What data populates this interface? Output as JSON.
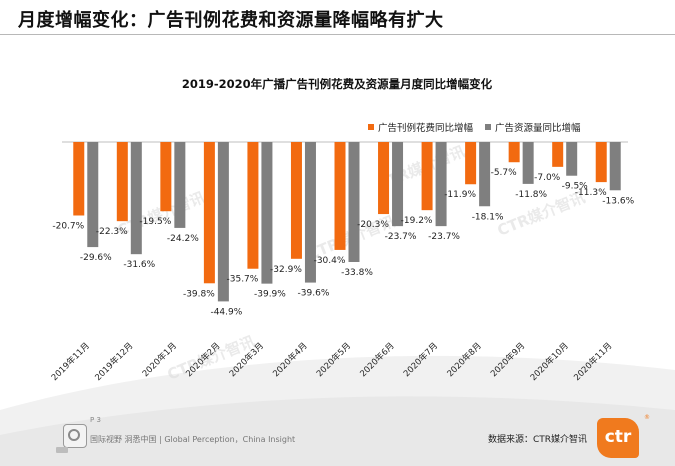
{
  "slide": {
    "title": "月度增幅变化：广告刊例花费和资源量降幅略有扩大"
  },
  "footer": {
    "page": "P 3",
    "slogan": "国际视野 洞悉中国 | Global Perception，China Insight",
    "source": "数据来源：CTR媒介智讯",
    "logo_text": "ctr"
  },
  "colors": {
    "series_1": "#f26a10",
    "series_2": "#7f7f7f"
  },
  "chart_data": {
    "type": "bar",
    "title": "2019-2020年广播广告刊例花费及资源量月度同比增幅变化",
    "categories": [
      "2019年11月",
      "2019年12月",
      "2020年1月",
      "2020年2月",
      "2020年3月",
      "2020年4月",
      "2020年5月",
      "2020年6月",
      "2020年7月",
      "2020年8月",
      "2020年9月",
      "2020年10月",
      "2020年11月"
    ],
    "series": [
      {
        "name": "广告刊例花费同比增幅",
        "values": [
          -20.7,
          -22.3,
          -19.5,
          -39.8,
          -35.7,
          -32.9,
          -30.4,
          -20.3,
          -19.2,
          -11.9,
          -5.7,
          -7.0,
          -11.3
        ]
      },
      {
        "name": "广告资源量同比增幅",
        "values": [
          -29.6,
          -31.6,
          -24.2,
          -44.9,
          -39.9,
          -39.6,
          -33.8,
          -23.7,
          -23.7,
          -18.1,
          -11.8,
          -9.5,
          -13.6
        ]
      }
    ],
    "data_labels": [
      [
        "-20.7%",
        "-22.3%",
        "-19.5%",
        "-39.8%",
        "-35.7%",
        "-32.9%",
        "-30.4%",
        "-20.3%",
        "-19.2%",
        "-11.9%",
        "-5.7%",
        "-7.0%",
        "-11.3%"
      ],
      [
        "-29.6%",
        "-31.6%",
        "-24.2%",
        "-44.9%",
        "-39.9%",
        "-39.6%",
        "-33.8%",
        "-23.7%",
        "-23.7%",
        "-18.1%",
        "-11.8%",
        "-9.5%",
        "-13.6%"
      ]
    ],
    "ylim": [
      -50,
      0
    ],
    "legend": "top-right",
    "grid": false,
    "watermark": "CTR媒介智讯"
  }
}
